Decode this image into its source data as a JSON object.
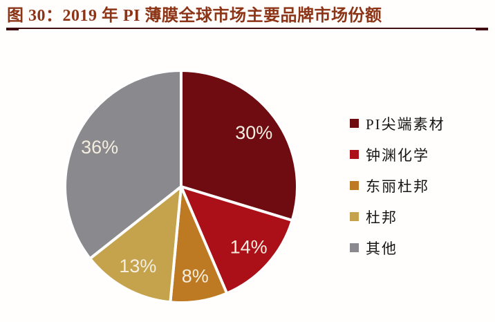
{
  "figure": {
    "title": "图 30：2019 年 PI 薄膜全球市场主要品牌市场份额",
    "title_color": "#8C3415",
    "rule_color": "#400D11"
  },
  "chart_data": {
    "type": "pie",
    "title": "2019 年 PI 薄膜全球市场主要品牌市场份额",
    "start_angle_deg": 0,
    "direction": "clockwise",
    "legend_position": "right",
    "label_color": "#F4EEE0",
    "separator_color": "#FFFFFF",
    "slices": [
      {
        "label": "PI尖端素材",
        "value": 30,
        "display": "30%",
        "color": "#6E0C12"
      },
      {
        "label": "钟渊化学",
        "value": 14,
        "display": "14%",
        "color": "#AB1019"
      },
      {
        "label": "东丽杜邦",
        "value": 8,
        "display": "8%",
        "color": "#BE7A23"
      },
      {
        "label": "杜邦",
        "value": 13,
        "display": "13%",
        "color": "#C4A34C"
      },
      {
        "label": "其他",
        "value": 36,
        "display": "36%",
        "color": "#8A898D"
      }
    ]
  }
}
